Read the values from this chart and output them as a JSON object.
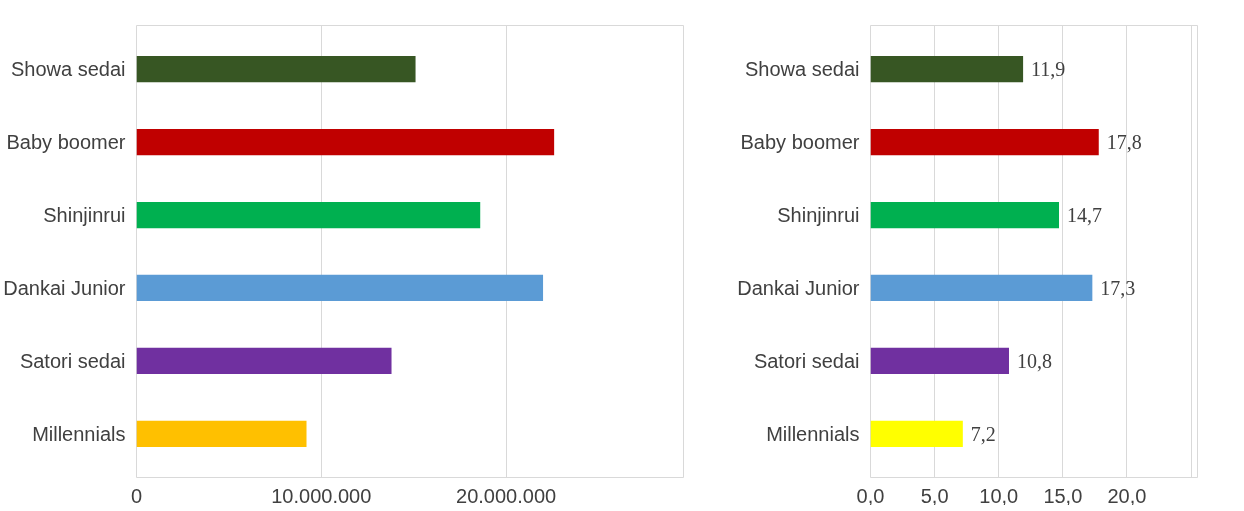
{
  "chart_data": [
    {
      "type": "bar",
      "orientation": "horizontal",
      "categories": [
        "Showa sedai",
        "Baby boomer",
        "Shinjinrui",
        "Dankai Junior",
        "Satori sedai",
        "Millennials"
      ],
      "values": [
        15100000,
        22600000,
        18600000,
        22000000,
        13800000,
        9200000
      ],
      "colors": [
        "#375623",
        "#c00000",
        "#00b050",
        "#5b9bd5",
        "#7030a0",
        "#ffc000"
      ],
      "xlim": [
        0,
        29600000
      ],
      "xticks": [
        0,
        {
          "value": 10000000,
          "label": "10.000.000"
        },
        {
          "value": 20000000,
          "label": "20.000.000"
        }
      ],
      "grid": "x"
    },
    {
      "type": "bar",
      "orientation": "horizontal",
      "categories": [
        "Showa sedai",
        "Baby boomer",
        "Shinjinrui",
        "Dankai Junior",
        "Satori sedai",
        "Millennials"
      ],
      "values": [
        11.9,
        17.8,
        14.7,
        17.3,
        10.8,
        7.2
      ],
      "value_labels": [
        "11,9",
        "17,8",
        "14,7",
        "17,3",
        "10,8",
        "7,2"
      ],
      "colors": [
        "#375623",
        "#c00000",
        "#00b050",
        "#5b9bd5",
        "#7030a0",
        "#ffff00"
      ],
      "xlim": [
        0,
        25.5
      ],
      "xticks": [
        {
          "value": 0,
          "label": "0,0"
        },
        {
          "value": 5,
          "label": "5,0"
        },
        {
          "value": 10,
          "label": "10,0"
        },
        {
          "value": 15,
          "label": "15,0"
        },
        {
          "value": 20,
          "label": "20,0"
        },
        {
          "value": 25,
          "label": null
        }
      ],
      "grid": "x"
    }
  ]
}
